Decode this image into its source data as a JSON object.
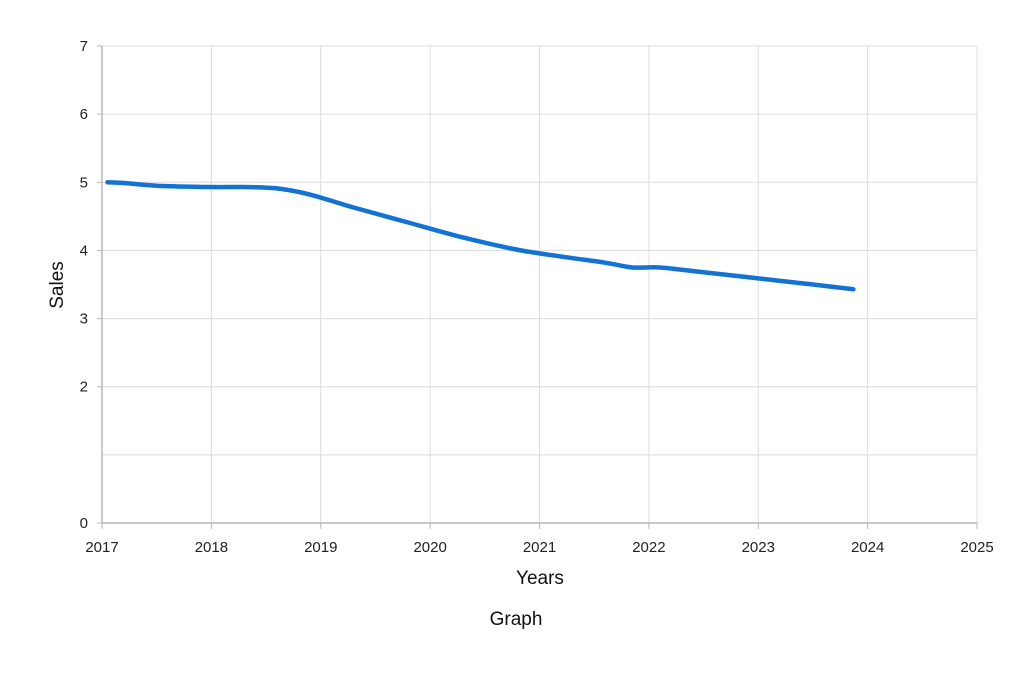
{
  "chart_data": {
    "type": "line",
    "title": "",
    "caption": "Graph",
    "xlabel": "Years",
    "ylabel": "Sales",
    "xlim": [
      2017,
      2025
    ],
    "ylim": [
      0,
      7
    ],
    "x_ticks": [
      "2017",
      "2018",
      "2019",
      "2020",
      "2021",
      "2022",
      "2023",
      "2024",
      "2025"
    ],
    "y_ticks": [
      "0",
      "2",
      "3",
      "4",
      "5",
      "6",
      "7"
    ],
    "grid": true,
    "colors": {
      "line": "#1273d4",
      "grid": "#dcdcdc",
      "axis": "#b8b8b8"
    },
    "series": [
      {
        "x": [
          2017.05,
          2017.2,
          2017.5,
          2018.0,
          2018.3,
          2018.6,
          2018.9,
          2019.3,
          2019.8,
          2020.3,
          2020.8,
          2021.2,
          2021.6,
          2021.85,
          2022.1,
          2022.5,
          2023.0,
          2023.5,
          2023.87
        ],
        "y": [
          5.0,
          4.99,
          4.95,
          4.93,
          4.93,
          4.91,
          4.82,
          4.63,
          4.41,
          4.19,
          4.01,
          3.91,
          3.82,
          3.75,
          3.75,
          3.68,
          3.59,
          3.5,
          3.43
        ]
      }
    ]
  }
}
